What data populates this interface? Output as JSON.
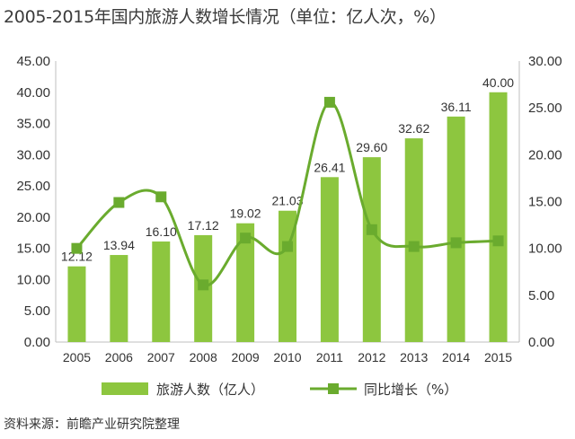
{
  "title": "2005-2015年国内旅游人数增长情况（单位：亿人次，%）",
  "source": "资料来源：前瞻产业研究院整理",
  "chart_data": {
    "type": "bar",
    "categories": [
      "2005",
      "2006",
      "2007",
      "2008",
      "2009",
      "2010",
      "2011",
      "2012",
      "2013",
      "2014",
      "2015"
    ],
    "series": [
      {
        "name": "旅游人数（亿人）",
        "type": "bar",
        "axis": "left",
        "color": "#8dc63f",
        "values": [
          12.12,
          13.94,
          16.1,
          17.12,
          19.02,
          21.03,
          26.41,
          29.6,
          32.62,
          36.11,
          40.0
        ],
        "labels": [
          "12.12",
          "13.94",
          "16.10",
          "17.12",
          "19.02",
          "21.03",
          "26.41",
          "29.60",
          "32.62",
          "36.11",
          "40.00"
        ]
      },
      {
        "name": "同比增长（%）",
        "type": "line",
        "axis": "right",
        "color": "#6aab2e",
        "values": [
          10.0,
          14.9,
          15.5,
          6.1,
          11.1,
          10.2,
          25.6,
          12.0,
          10.2,
          10.6,
          10.8
        ]
      }
    ],
    "y_left": {
      "min": 0,
      "max": 45,
      "ticks": [
        "0.00",
        "5.00",
        "10.00",
        "15.00",
        "20.00",
        "25.00",
        "30.00",
        "35.00",
        "40.00",
        "45.00"
      ]
    },
    "y_right": {
      "min": 0,
      "max": 30,
      "ticks": [
        "0.00",
        "5.00",
        "10.00",
        "15.00",
        "20.00",
        "25.00",
        "30.00"
      ]
    },
    "grid": false,
    "legend_position": "bottom"
  }
}
